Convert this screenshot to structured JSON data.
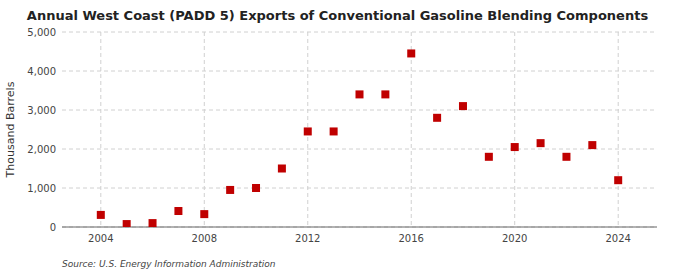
{
  "chart_data": {
    "type": "scatter",
    "title": "Annual West Coast (PADD 5) Exports of Conventional Gasoline Blending Components",
    "y_label": "Thousand Barrels",
    "annotations": [
      "Source: U.S. Energy Information Administration"
    ],
    "x": [
      2004,
      2005,
      2006,
      2007,
      2008,
      2009,
      2010,
      2011,
      2012,
      2013,
      2014,
      2015,
      2016,
      2017,
      2018,
      2019,
      2020,
      2021,
      2022,
      2023,
      2024
    ],
    "values": [
      310,
      75,
      100,
      410,
      330,
      950,
      1000,
      1500,
      2450,
      2450,
      3400,
      3400,
      4450,
      2800,
      3100,
      1800,
      2050,
      2150,
      1800,
      2100,
      1200
    ],
    "color": "#c00000",
    "marker": "square",
    "xlim": [
      2002.5,
      2025.5
    ],
    "xticks": [
      2004,
      2008,
      2012,
      2016,
      2020,
      2024
    ],
    "ylim": [
      0,
      5000
    ],
    "yticks": [
      0,
      {
        "value": 1000,
        "label": "1,000"
      },
      {
        "value": 2000,
        "label": "2,000"
      },
      {
        "value": 3000,
        "label": "3,000"
      },
      {
        "value": 4000,
        "label": "4,000"
      },
      {
        "value": 5000,
        "label": "5,000"
      }
    ],
    "grid": true
  }
}
